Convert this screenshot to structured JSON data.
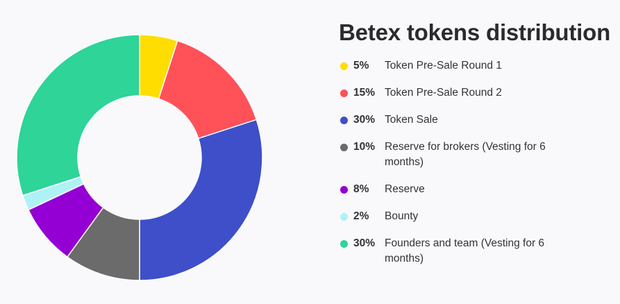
{
  "chart_data": {
    "type": "pie",
    "variant": "donut",
    "title": "Betex tokens distribution",
    "legend_position": "right",
    "slices": [
      {
        "percent_label": "5%",
        "value": 5,
        "label": "Token Pre-Sale Round 1",
        "color": "#ffdd00"
      },
      {
        "percent_label": "15%",
        "value": 15,
        "label": "Token Pre-Sale Round 2",
        "color": "#ff5158"
      },
      {
        "percent_label": "30%",
        "value": 30,
        "label": "Token Sale",
        "color": "#3e4fc9"
      },
      {
        "percent_label": "10%",
        "value": 10,
        "label": "Reserve for brokers (Vesting for 6 months)",
        "color": "#6b6b6b"
      },
      {
        "percent_label": "8%",
        "value": 8,
        "label": "Reserve",
        "color": "#9400d3"
      },
      {
        "percent_label": "2%",
        "value": 2,
        "label": "Bounty",
        "color": "#aef2f6"
      },
      {
        "percent_label": "30%",
        "value": 30,
        "label": "Founders and team (Vesting for 6 months)",
        "color": "#2ed498"
      }
    ]
  }
}
